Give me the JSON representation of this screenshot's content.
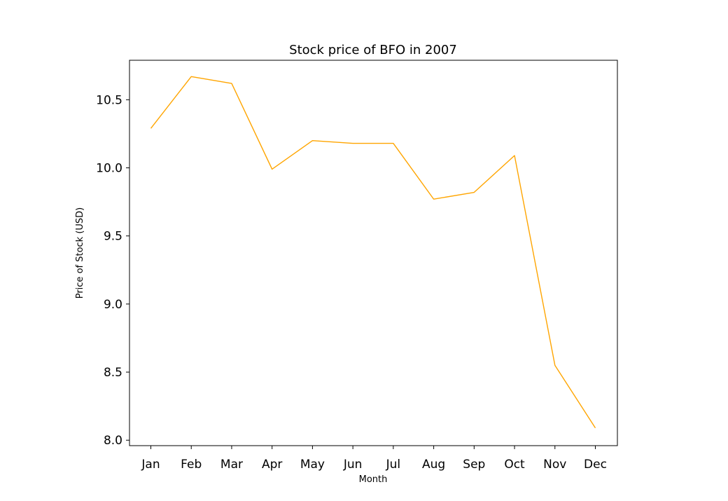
{
  "chart_data": {
    "type": "line",
    "title": "Stock price of BFO in 2007",
    "xlabel": "Month",
    "ylabel": "Price of Stock (USD)",
    "categories": [
      "Jan",
      "Feb",
      "Mar",
      "Apr",
      "May",
      "Jun",
      "Jul",
      "Aug",
      "Sep",
      "Oct",
      "Nov",
      "Dec"
    ],
    "series": [
      {
        "values": [
          10.29,
          10.67,
          10.62,
          9.99,
          10.2,
          10.18,
          10.18,
          9.77,
          9.82,
          10.09,
          8.55,
          8.09
        ],
        "color": "#ffa500"
      }
    ],
    "yticks": [
      8.0,
      8.5,
      9.0,
      9.5,
      10.0,
      10.5
    ],
    "ylim": [
      7.96,
      10.79
    ],
    "grid": false,
    "legend": "none"
  }
}
